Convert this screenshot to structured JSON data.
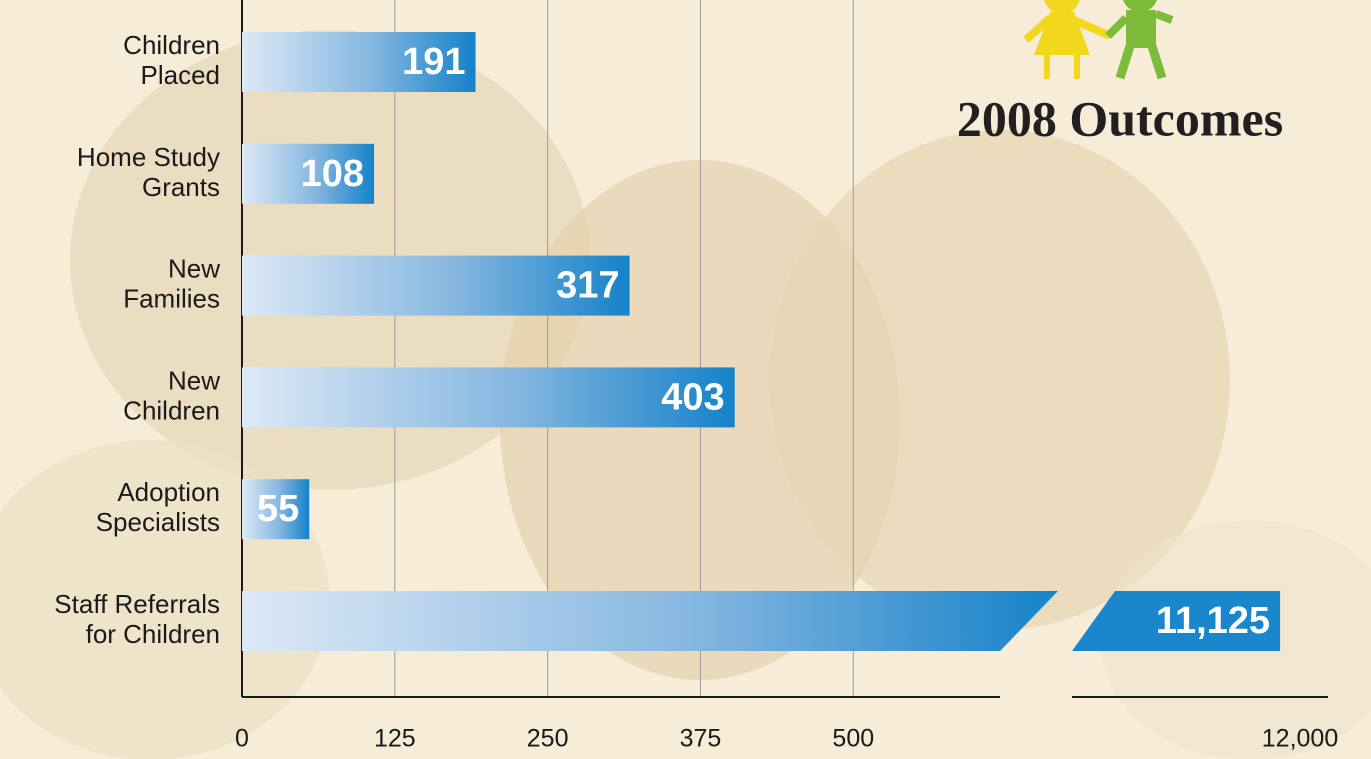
{
  "chart_data": {
    "type": "bar",
    "orientation": "horizontal",
    "title": "2008 Outcomes",
    "categories": [
      [
        "Children",
        "Placed"
      ],
      [
        "Home Study",
        "Grants"
      ],
      [
        "New",
        "Families"
      ],
      [
        "New",
        "Children"
      ],
      [
        "Adoption",
        "Specialists"
      ],
      [
        "Staff Referrals",
        "for Children"
      ]
    ],
    "values": [
      191,
      108,
      317,
      403,
      55,
      11125
    ],
    "value_labels": [
      "191",
      "108",
      "317",
      "403",
      "55",
      "11,125"
    ],
    "color": "#1a86cc",
    "xlim": [
      0,
      12000
    ],
    "xbreak": [
      620,
      2000
    ],
    "xticks": [
      0,
      125,
      250,
      375,
      500,
      {
        "value": 12000,
        "label": "12,000"
      }
    ],
    "grid": true
  }
}
